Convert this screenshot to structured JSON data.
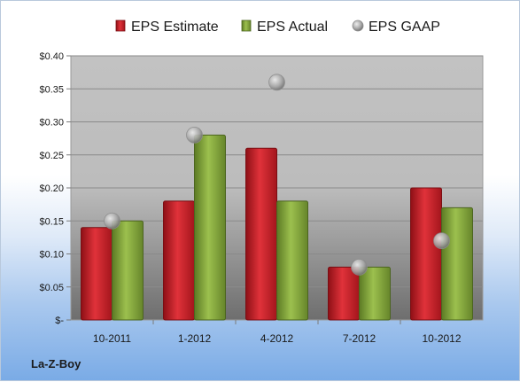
{
  "chart_data": {
    "type": "bar",
    "title": "",
    "xlabel": "",
    "ylabel": "",
    "categories": [
      "10-2011",
      "1-2012",
      "4-2012",
      "7-2012",
      "10-2012"
    ],
    "series": [
      {
        "name": "EPS Estimate",
        "kind": "bar",
        "color": "#c8202a",
        "values": [
          0.14,
          0.18,
          0.26,
          0.08,
          0.2
        ]
      },
      {
        "name": "EPS Actual",
        "kind": "bar",
        "color": "#82a63c",
        "values": [
          0.15,
          0.28,
          0.18,
          0.08,
          0.17
        ]
      },
      {
        "name": "EPS GAAP",
        "kind": "marker",
        "color": "#a6a6a6",
        "values": [
          0.15,
          0.28,
          0.36,
          0.08,
          0.12
        ]
      }
    ],
    "ylim": [
      0,
      0.4
    ],
    "yticks": [
      0,
      0.05,
      0.1,
      0.15,
      0.2,
      0.25,
      0.3,
      0.35,
      0.4
    ],
    "ytick_labels": [
      "$-",
      "$0.05",
      "$0.10",
      "$0.15",
      "$0.20",
      "$0.25",
      "$0.30",
      "$0.35",
      "$0.40"
    ],
    "grid": true,
    "legend_position": "top"
  },
  "footer": {
    "company": "La-Z-Boy"
  }
}
